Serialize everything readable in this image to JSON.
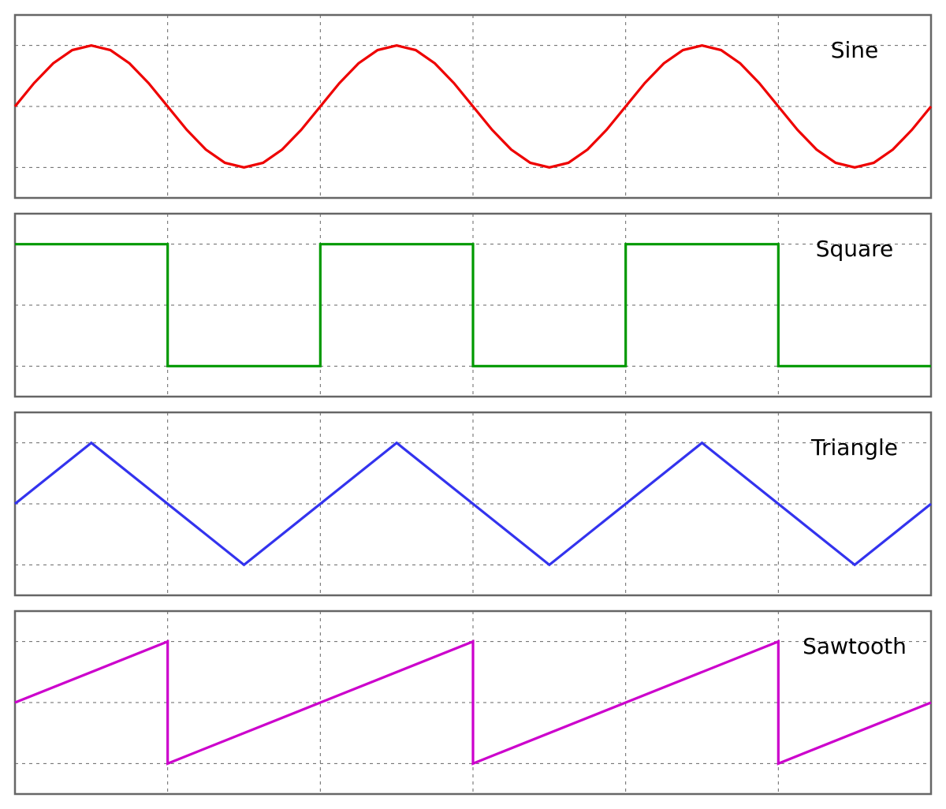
{
  "chart_data": [
    {
      "type": "line",
      "title": "Sine",
      "xlabel": "",
      "ylabel": "",
      "x_range": [
        0,
        3
      ],
      "ylim": [
        -1.5,
        1.5
      ],
      "grid": true,
      "grid_x": [
        0.5,
        1,
        1.5,
        2,
        2.5
      ],
      "grid_y": [
        -1,
        0,
        1
      ],
      "label_position": "top-right",
      "color": "#ee0000",
      "series": [
        {
          "x": [
            0,
            0.0625,
            0.125,
            0.1875,
            0.25,
            0.3125,
            0.375,
            0.4375,
            0.5,
            0.5625,
            0.625,
            0.6875,
            0.75,
            0.8125,
            0.875,
            0.9375,
            1,
            1.0625,
            1.125,
            1.1875,
            1.25,
            1.3125,
            1.375,
            1.4375,
            1.5,
            1.5625,
            1.625,
            1.6875,
            1.75,
            1.8125,
            1.875,
            1.9375,
            2,
            2.0625,
            2.125,
            2.1875,
            2.25,
            2.3125,
            2.375,
            2.4375,
            2.5,
            2.5625,
            2.625,
            2.6875,
            2.75,
            2.8125,
            2.875,
            2.9375,
            3
          ],
          "y": [
            0,
            0.383,
            0.707,
            0.924,
            1,
            0.924,
            0.707,
            0.383,
            0,
            -0.383,
            -0.707,
            -0.924,
            -1,
            -0.924,
            -0.707,
            -0.383,
            0,
            0.383,
            0.707,
            0.924,
            1,
            0.924,
            0.707,
            0.383,
            0,
            -0.383,
            -0.707,
            -0.924,
            -1,
            -0.924,
            -0.707,
            -0.383,
            0,
            0.383,
            0.707,
            0.924,
            1,
            0.924,
            0.707,
            0.383,
            0,
            -0.383,
            -0.707,
            -0.924,
            -1,
            -0.924,
            -0.707,
            -0.383,
            0
          ]
        }
      ]
    },
    {
      "type": "line",
      "title": "Square",
      "xlabel": "",
      "ylabel": "",
      "x_range": [
        0,
        3
      ],
      "ylim": [
        -1.5,
        1.5
      ],
      "grid": true,
      "grid_x": [
        0.5,
        1,
        1.5,
        2,
        2.5
      ],
      "grid_y": [
        -1,
        0,
        1
      ],
      "label_position": "top-right",
      "color": "#009900",
      "series": [
        {
          "x": [
            0,
            0.5,
            0.5,
            1,
            1,
            1.5,
            1.5,
            2,
            2,
            2.5,
            2.5,
            3
          ],
          "y": [
            1,
            1,
            -1,
            -1,
            1,
            1,
            -1,
            -1,
            1,
            1,
            -1,
            -1
          ]
        }
      ]
    },
    {
      "type": "line",
      "title": "Triangle",
      "xlabel": "",
      "ylabel": "",
      "x_range": [
        0,
        3
      ],
      "ylim": [
        -1.5,
        1.5
      ],
      "grid": true,
      "grid_x": [
        0.5,
        1,
        1.5,
        2,
        2.5
      ],
      "grid_y": [
        -1,
        0,
        1
      ],
      "label_position": "top-right",
      "color": "#3333ee",
      "series": [
        {
          "x": [
            0,
            0.25,
            0.75,
            1.25,
            1.75,
            2.25,
            2.75,
            3
          ],
          "y": [
            0,
            1,
            -1,
            1,
            -1,
            1,
            -1,
            0
          ]
        }
      ]
    },
    {
      "type": "line",
      "title": "Sawtooth",
      "xlabel": "",
      "ylabel": "",
      "x_range": [
        0,
        3
      ],
      "ylim": [
        -1.5,
        1.5
      ],
      "grid": true,
      "grid_x": [
        0.5,
        1,
        1.5,
        2,
        2.5
      ],
      "grid_y": [
        -1,
        0,
        1
      ],
      "label_position": "top-right",
      "color": "#cc00cc",
      "series": [
        {
          "x": [
            0,
            0.5,
            0.5,
            1.5,
            1.5,
            2.5,
            2.5,
            3
          ],
          "y": [
            0,
            1,
            -1,
            1,
            -1,
            1,
            -1,
            0
          ]
        }
      ]
    }
  ]
}
